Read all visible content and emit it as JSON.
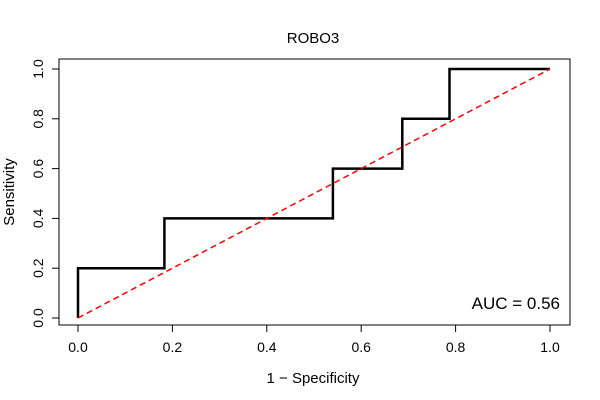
{
  "chart_data": {
    "type": "line",
    "title": "ROBO3",
    "xlabel": "1 − Specificity",
    "ylabel": "Sensitivity",
    "xlim": [
      0,
      1
    ],
    "ylim": [
      0,
      1
    ],
    "xticks": [
      "0.0",
      "0.2",
      "0.4",
      "0.6",
      "0.8",
      "1.0"
    ],
    "yticks": [
      "0.0",
      "0.2",
      "0.4",
      "0.6",
      "0.8",
      "1.0"
    ],
    "grid": false,
    "series": [
      {
        "name": "ROC curve",
        "color": "#000000",
        "x": [
          0,
          0,
          0.183,
          0.183,
          0.54,
          0.54,
          0.687,
          0.687,
          0.787,
          0.787,
          1.0
        ],
        "y": [
          0,
          0.2,
          0.2,
          0.4,
          0.4,
          0.6,
          0.6,
          0.8,
          0.8,
          1.0,
          1.0
        ]
      },
      {
        "name": "chance line",
        "color": "#ff0000",
        "style": "dashed",
        "x": [
          0,
          1
        ],
        "y": [
          0,
          1
        ]
      }
    ],
    "annotation": "AUC = 0.56"
  }
}
